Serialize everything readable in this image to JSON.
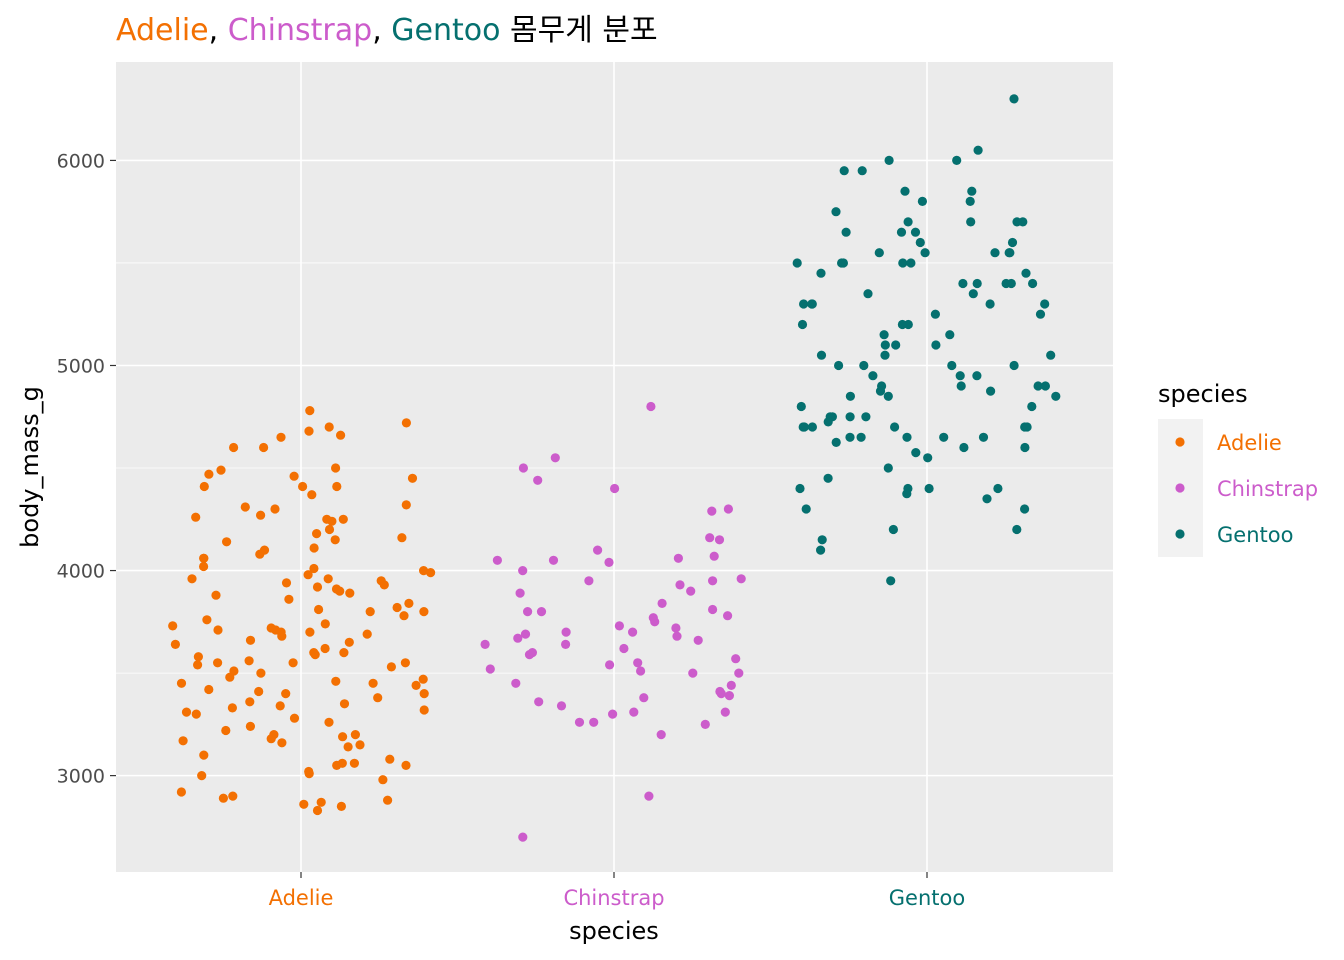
{
  "colors": {
    "Adelie": "#F37002",
    "Chinstrap": "#CC5CCB",
    "Gentoo": "#05706F",
    "panel": "#EBEBEB",
    "grid": "#FFFFFF",
    "tick_text": "#4D4D4D"
  },
  "title": {
    "part1": "Adelie",
    "sep1": ",",
    "part2": "Chinstrap",
    "sep2": ",",
    "part3": "Gentoo",
    "suffix": "몸무게 분포"
  },
  "chart_data": {
    "type": "scatter",
    "title": "Adelie, Chinstrap, Gentoo 몸무게 분포",
    "xlabel": "species",
    "ylabel": "body_mass_g",
    "categories": [
      "Adelie",
      "Chinstrap",
      "Gentoo"
    ],
    "y_ticks": [
      3000,
      4000,
      5000,
      6000
    ],
    "y_tick_labels": [
      "3000",
      "4000",
      "5000",
      "6000"
    ],
    "ylim": [
      2530,
      6480
    ],
    "jitter": true,
    "grid": true,
    "legend": {
      "title": "species",
      "position": "right",
      "entries": [
        "Adelie",
        "Chinstrap",
        "Gentoo"
      ]
    },
    "series": [
      {
        "name": "Adelie",
        "values": [
          4780,
          4720,
          4700,
          4680,
          4660,
          4650,
          4600,
          4600,
          4500,
          4490,
          4470,
          4460,
          4450,
          4410,
          4410,
          4410,
          4370,
          4320,
          4310,
          4300,
          4270,
          4260,
          4250,
          4250,
          4240,
          4200,
          4180,
          4160,
          4150,
          4140,
          4110,
          4100,
          4080,
          4060,
          4060,
          4020,
          4010,
          4000,
          3990,
          3980,
          3960,
          3960,
          3950,
          3940,
          3930,
          3920,
          3910,
          3900,
          3890,
          3880,
          3860,
          3840,
          3820,
          3810,
          3800,
          3800,
          3780,
          3760,
          3740,
          3730,
          3720,
          3710,
          3710,
          3700,
          3700,
          3690,
          3680,
          3660,
          3650,
          3640,
          3620,
          3600,
          3600,
          3590,
          3580,
          3560,
          3550,
          3550,
          3550,
          3540,
          3530,
          3510,
          3500,
          3480,
          3470,
          3460,
          3450,
          3450,
          3440,
          3420,
          3410,
          3400,
          3400,
          3380,
          3360,
          3350,
          3340,
          3330,
          3320,
          3310,
          3300,
          3280,
          3260,
          3240,
          3220,
          3200,
          3200,
          3190,
          3180,
          3170,
          3160,
          3150,
          3140,
          3100,
          3080,
          3060,
          3060,
          3050,
          3050,
          3020,
          3010,
          3000,
          2980,
          2920,
          2900,
          2890,
          2880,
          2870,
          2860,
          2850,
          2830
        ]
      },
      {
        "name": "Chinstrap",
        "values": [
          4800,
          4550,
          4500,
          4440,
          4400,
          4300,
          4290,
          4160,
          4150,
          4100,
          4070,
          4060,
          4050,
          4050,
          4040,
          4000,
          3960,
          3950,
          3950,
          3930,
          3900,
          3890,
          3840,
          3810,
          3800,
          3800,
          3780,
          3770,
          3750,
          3730,
          3720,
          3700,
          3700,
          3690,
          3680,
          3670,
          3660,
          3640,
          3640,
          3620,
          3600,
          3590,
          3570,
          3550,
          3540,
          3520,
          3510,
          3500,
          3500,
          3450,
          3440,
          3410,
          3400,
          3390,
          3380,
          3360,
          3340,
          3310,
          3310,
          3300,
          3260,
          3260,
          3250,
          3200,
          2900,
          2700
        ]
      },
      {
        "name": "Gentoo",
        "values": [
          6300,
          6050,
          6000,
          6000,
          5950,
          5950,
          5850,
          5850,
          5800,
          5800,
          5750,
          5700,
          5700,
          5700,
          5700,
          5650,
          5650,
          5650,
          5600,
          5600,
          5550,
          5550,
          5550,
          5550,
          5550,
          5500,
          5500,
          5500,
          5500,
          5500,
          5450,
          5450,
          5400,
          5400,
          5400,
          5400,
          5400,
          5350,
          5350,
          5300,
          5300,
          5300,
          5300,
          5300,
          5250,
          5250,
          5200,
          5200,
          5200,
          5150,
          5150,
          5100,
          5100,
          5100,
          5050,
          5050,
          5050,
          5000,
          5000,
          5000,
          5000,
          4950,
          4950,
          4950,
          4900,
          4900,
          4900,
          4900,
          4875,
          4875,
          4850,
          4850,
          4850,
          4800,
          4800,
          4750,
          4750,
          4750,
          4750,
          4725,
          4700,
          4700,
          4700,
          4700,
          4700,
          4700,
          4650,
          4650,
          4650,
          4650,
          4650,
          4625,
          4600,
          4600,
          4575,
          4550,
          4500,
          4450,
          4400,
          4400,
          4400,
          4400,
          4375,
          4350,
          4300,
          4300,
          4200,
          4200,
          4150,
          4100,
          3950
        ]
      }
    ]
  }
}
